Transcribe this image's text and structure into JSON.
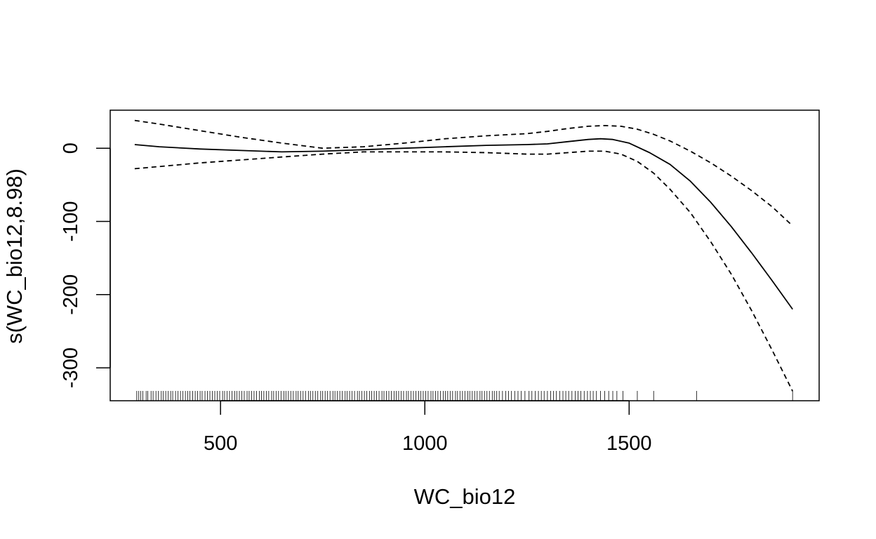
{
  "chart_data": {
    "type": "line",
    "xlabel": "WC_bio12",
    "ylabel": "s(WC_bio12,8.98)",
    "xlim": [
      230,
      1965
    ],
    "ylim": [
      -345,
      52
    ],
    "x_ticks": [
      500,
      1000,
      1500
    ],
    "y_ticks": [
      0,
      -100,
      -200,
      -300
    ],
    "grid": false,
    "series": [
      {
        "style": "solid",
        "x": [
          290,
          350,
          450,
          550,
          650,
          750,
          850,
          950,
          1050,
          1150,
          1250,
          1300,
          1350,
          1400,
          1430,
          1460,
          1500,
          1550,
          1600,
          1650,
          1700,
          1750,
          1800,
          1850,
          1900
        ],
        "y": [
          5,
          2,
          -1,
          -3,
          -5,
          -4,
          -2,
          0,
          2,
          4,
          5,
          6,
          9,
          12,
          13,
          12,
          7,
          -6,
          -22,
          -45,
          -74,
          -107,
          -143,
          -181,
          -220
        ]
      },
      {
        "style": "dashed",
        "x": [
          290,
          350,
          450,
          550,
          650,
          750,
          850,
          950,
          1050,
          1150,
          1250,
          1300,
          1350,
          1400,
          1440,
          1480,
          1520,
          1560,
          1600,
          1650,
          1700,
          1750,
          1800,
          1850,
          1900
        ],
        "y": [
          38,
          33,
          24,
          15,
          7,
          0,
          2,
          7,
          13,
          17,
          20,
          23,
          27,
          30,
          31,
          30,
          26,
          19,
          10,
          -4,
          -20,
          -38,
          -58,
          -80,
          -106
        ]
      },
      {
        "style": "dashed",
        "x": [
          290,
          350,
          450,
          550,
          650,
          750,
          850,
          950,
          1050,
          1150,
          1250,
          1300,
          1350,
          1400,
          1440,
          1480,
          1520,
          1560,
          1600,
          1650,
          1700,
          1750,
          1800,
          1850,
          1900
        ],
        "y": [
          -28,
          -25,
          -20,
          -16,
          -12,
          -8,
          -5,
          -5,
          -5,
          -6,
          -8,
          -8,
          -6,
          -4,
          -4,
          -8,
          -18,
          -34,
          -56,
          -88,
          -128,
          -172,
          -222,
          -276,
          -332
        ]
      }
    ],
    "rug": [
      295,
      300,
      305,
      310,
      318,
      322,
      330,
      335,
      342,
      348,
      355,
      360,
      366,
      372,
      378,
      383,
      390,
      396,
      402,
      408,
      414,
      420,
      425,
      432,
      438,
      444,
      450,
      455,
      462,
      468,
      474,
      480,
      486,
      492,
      498,
      505,
      510,
      516,
      522,
      528,
      535,
      540,
      546,
      552,
      558,
      565,
      570,
      576,
      582,
      588,
      595,
      600,
      606,
      612,
      618,
      625,
      630,
      636,
      642,
      648,
      655,
      660,
      666,
      672,
      678,
      685,
      690,
      696,
      702,
      708,
      715,
      720,
      726,
      732,
      738,
      745,
      750,
      756,
      762,
      768,
      775,
      780,
      786,
      792,
      798,
      805,
      810,
      816,
      822,
      828,
      835,
      840,
      846,
      852,
      858,
      865,
      870,
      876,
      882,
      888,
      895,
      900,
      906,
      912,
      918,
      925,
      930,
      936,
      942,
      948,
      955,
      960,
      966,
      972,
      978,
      985,
      990,
      996,
      1002,
      1008,
      1015,
      1020,
      1026,
      1032,
      1038,
      1045,
      1050,
      1056,
      1062,
      1068,
      1075,
      1080,
      1086,
      1092,
      1098,
      1105,
      1110,
      1116,
      1122,
      1128,
      1135,
      1140,
      1146,
      1152,
      1158,
      1165,
      1170,
      1176,
      1182,
      1190,
      1198,
      1205,
      1212,
      1220,
      1228,
      1236,
      1245,
      1255,
      1262,
      1270,
      1278,
      1285,
      1292,
      1300,
      1308,
      1315,
      1322,
      1330,
      1338,
      1345,
      1352,
      1360,
      1368,
      1375,
      1382,
      1390,
      1398,
      1405,
      1412,
      1420,
      1430,
      1440,
      1450,
      1460,
      1470,
      1485,
      1520,
      1560,
      1665,
      1900
    ]
  }
}
